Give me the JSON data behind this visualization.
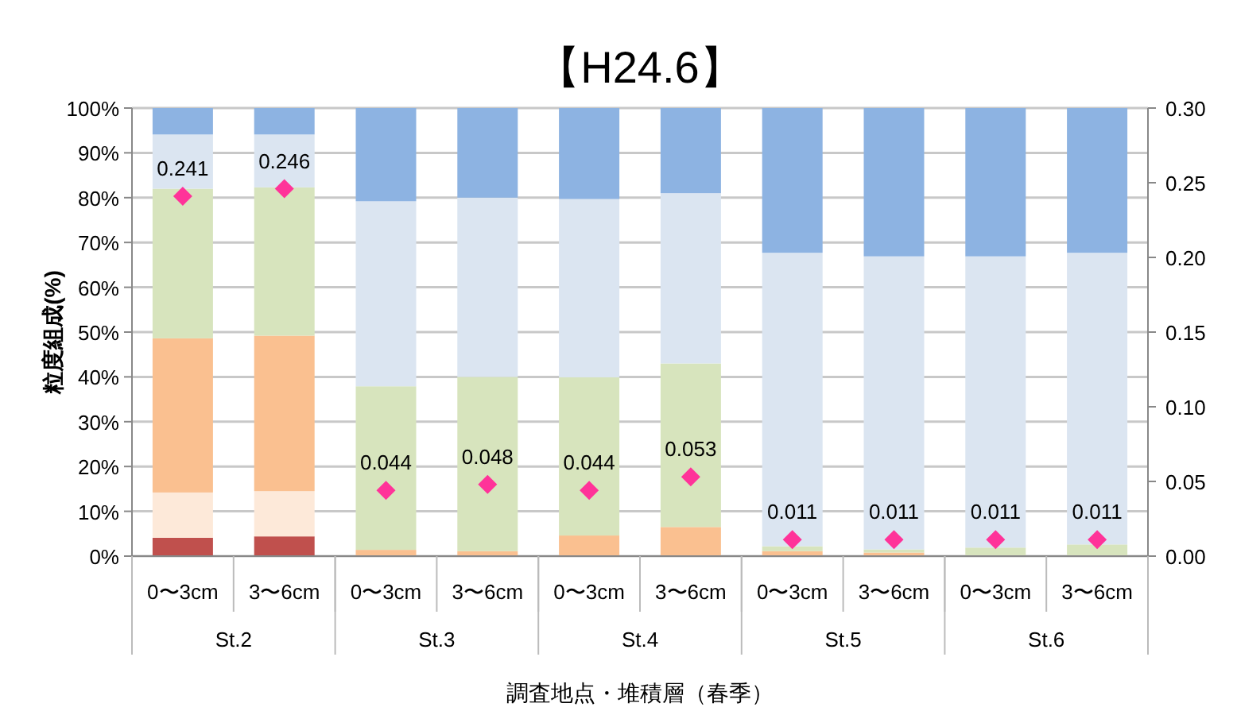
{
  "chart_data": {
    "type": "bar",
    "stacked": true,
    "title": "【H24.6】",
    "ylabel": "粒度組成(%)",
    "xlabel": "調査地点・堆積層（春季）",
    "categories": [
      "0〜3cm",
      "3〜6cm",
      "0〜3cm",
      "3〜6cm",
      "0〜3cm",
      "3〜6cm",
      "0〜3cm",
      "3〜6cm",
      "0〜3cm",
      "3〜6cm"
    ],
    "annotations": [
      "St.2",
      "St.3",
      "St.4",
      "St.5",
      "St.6"
    ],
    "series": [
      {
        "color": "#c0504d",
        "values": [
          4.1,
          4.4,
          0,
          0,
          0,
          0,
          0,
          0,
          0,
          0
        ]
      },
      {
        "color": "#fde9d9",
        "values": [
          10.1,
          10.1,
          0,
          0,
          0,
          0,
          0,
          0,
          0,
          0
        ]
      },
      {
        "color": "#fac090",
        "values": [
          34.4,
          34.7,
          1.4,
          1.1,
          4.6,
          6.5,
          1.1,
          0.8,
          0.2,
          0.2
        ]
      },
      {
        "color": "#d7e4bd",
        "values": [
          33.4,
          33.1,
          36.5,
          38.9,
          35.3,
          36.5,
          1.1,
          0.7,
          1.7,
          2.4
        ]
      },
      {
        "color": "#dbe5f1",
        "values": [
          12.1,
          11.8,
          41.3,
          40.0,
          39.8,
          38.0,
          65.5,
          65.4,
          65.0,
          65.1
        ]
      },
      {
        "color": "#8db3e2",
        "values": [
          5.9,
          5.9,
          20.8,
          20.0,
          20.3,
          19.0,
          32.3,
          33.1,
          33.1,
          32.3
        ]
      },
      {
        "type": "scatter",
        "axis": "y2",
        "color": "#ff3399",
        "marker": "diamond",
        "values": [
          0.241,
          0.246,
          0.044,
          0.048,
          0.044,
          0.053,
          0.011,
          0.011,
          0.011,
          0.011
        ],
        "value_labels": [
          "0.241",
          "0.246",
          "0.044",
          "0.048",
          "0.044",
          "0.053",
          "0.011",
          "0.011",
          "0.011",
          "0.011"
        ]
      }
    ],
    "ylim": [
      0,
      100
    ],
    "yticks": [
      {
        "value": 0,
        "label": "0%"
      },
      {
        "value": 10,
        "label": "10%"
      },
      {
        "value": 20,
        "label": "20%"
      },
      {
        "value": 30,
        "label": "30%"
      },
      {
        "value": 40,
        "label": "40%"
      },
      {
        "value": 50,
        "label": "50%"
      },
      {
        "value": 60,
        "label": "60%"
      },
      {
        "value": 70,
        "label": "70%"
      },
      {
        "value": 80,
        "label": "80%"
      },
      {
        "value": 90,
        "label": "90%"
      },
      {
        "value": 100,
        "label": "100%"
      }
    ],
    "y2lim": [
      0,
      0.3
    ],
    "y2ticks": [
      {
        "value": 0,
        "label": "0.00"
      },
      {
        "value": 0.05,
        "label": "0.05"
      },
      {
        "value": 0.1,
        "label": "0.10"
      },
      {
        "value": 0.15,
        "label": "0.15"
      },
      {
        "value": 0.2,
        "label": "0.20"
      },
      {
        "value": 0.25,
        "label": "0.25"
      },
      {
        "value": 0.3,
        "label": "0.30"
      }
    ],
    "grid": "y"
  }
}
